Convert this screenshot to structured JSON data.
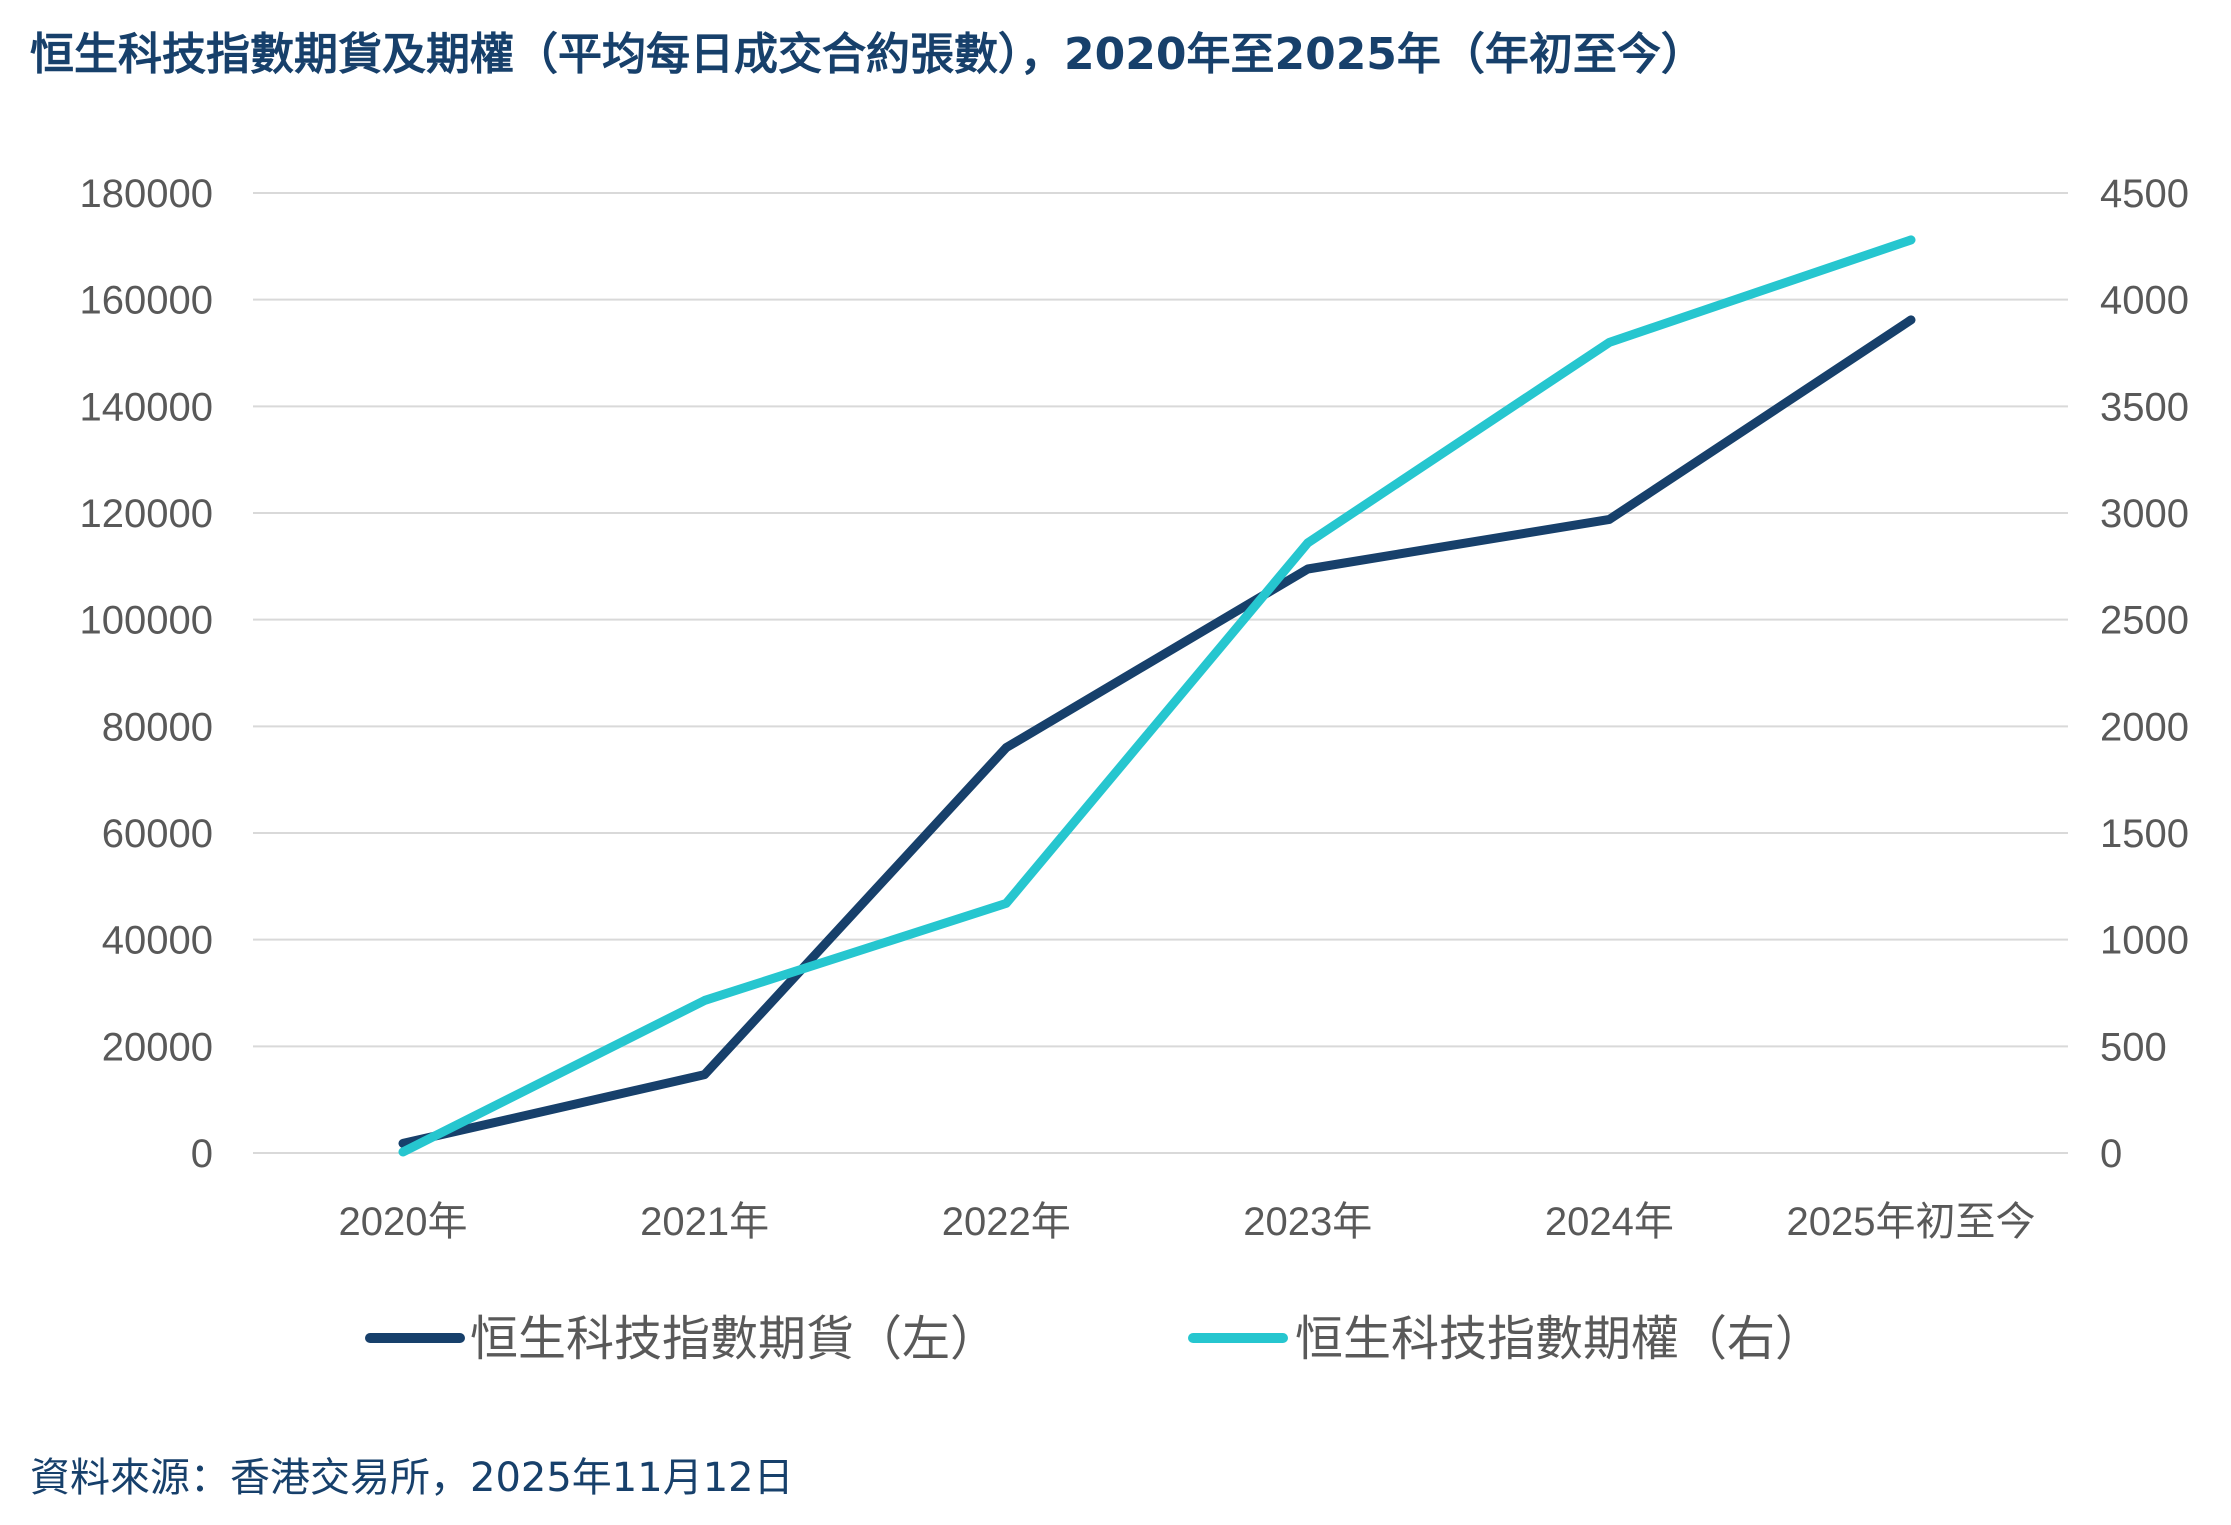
{
  "chart_data": {
    "type": "line",
    "title": "恒生科技指數期貨及期權（平均每日成交合約張數），2020年至2025年（年初至今）",
    "categories": [
      "2020年",
      "2021年",
      "2022年",
      "2023年",
      "2024年",
      "2025年初至今"
    ],
    "left_axis": {
      "ticks": [
        "0",
        "20000",
        "40000",
        "60000",
        "80000",
        "100000",
        "120000",
        "140000",
        "160000",
        "180000"
      ],
      "ylim": [
        0,
        180000
      ]
    },
    "right_axis": {
      "ticks": [
        "0",
        "500",
        "1000",
        "1500",
        "2000",
        "2500",
        "3000",
        "3500",
        "4000",
        "4500"
      ],
      "ylim": [
        0,
        4500
      ]
    },
    "series": [
      {
        "name": "恒生科技指數期貨（左）",
        "axis": "left",
        "color": "#17406b",
        "values": [
          1800,
          14700,
          76000,
          109500,
          118800,
          156200
        ]
      },
      {
        "name": "恒生科技指數期權（右）",
        "axis": "right",
        "color": "#26c6cf",
        "values": [
          5,
          715,
          1170,
          2860,
          3800,
          4280
        ]
      }
    ],
    "grid": true,
    "legend_position": "bottom"
  },
  "source": "資料來源：香港交易所，2025年11月12日"
}
